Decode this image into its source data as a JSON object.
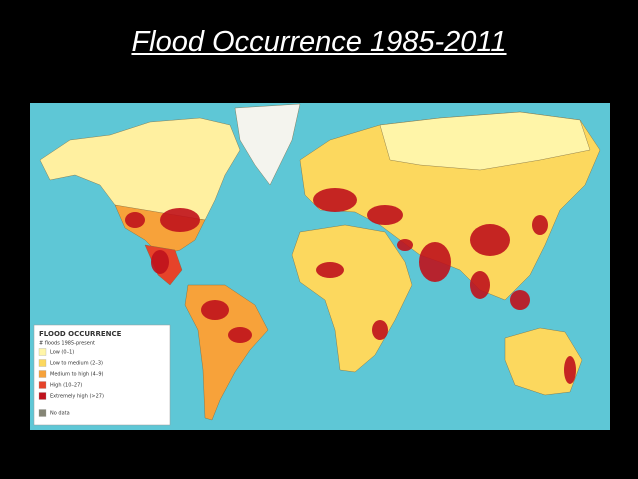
{
  "title": "Flood Occurrence 1985-2011",
  "legend": {
    "title": "FLOOD OCCURRENCE",
    "subtitle": "# floods 1985-present",
    "items": [
      {
        "label": "Low (0–1)",
        "color": "#fff5a8"
      },
      {
        "label": "Low to medium (2–3)",
        "color": "#fcd85e"
      },
      {
        "label": "Medium to high (4–9)",
        "color": "#f7a23a"
      },
      {
        "label": "High (10–27)",
        "color": "#e6432a"
      },
      {
        "label": "Extremely high (>27)",
        "color": "#c0121c"
      },
      {
        "label": "No data",
        "color": "#858575"
      }
    ]
  }
}
